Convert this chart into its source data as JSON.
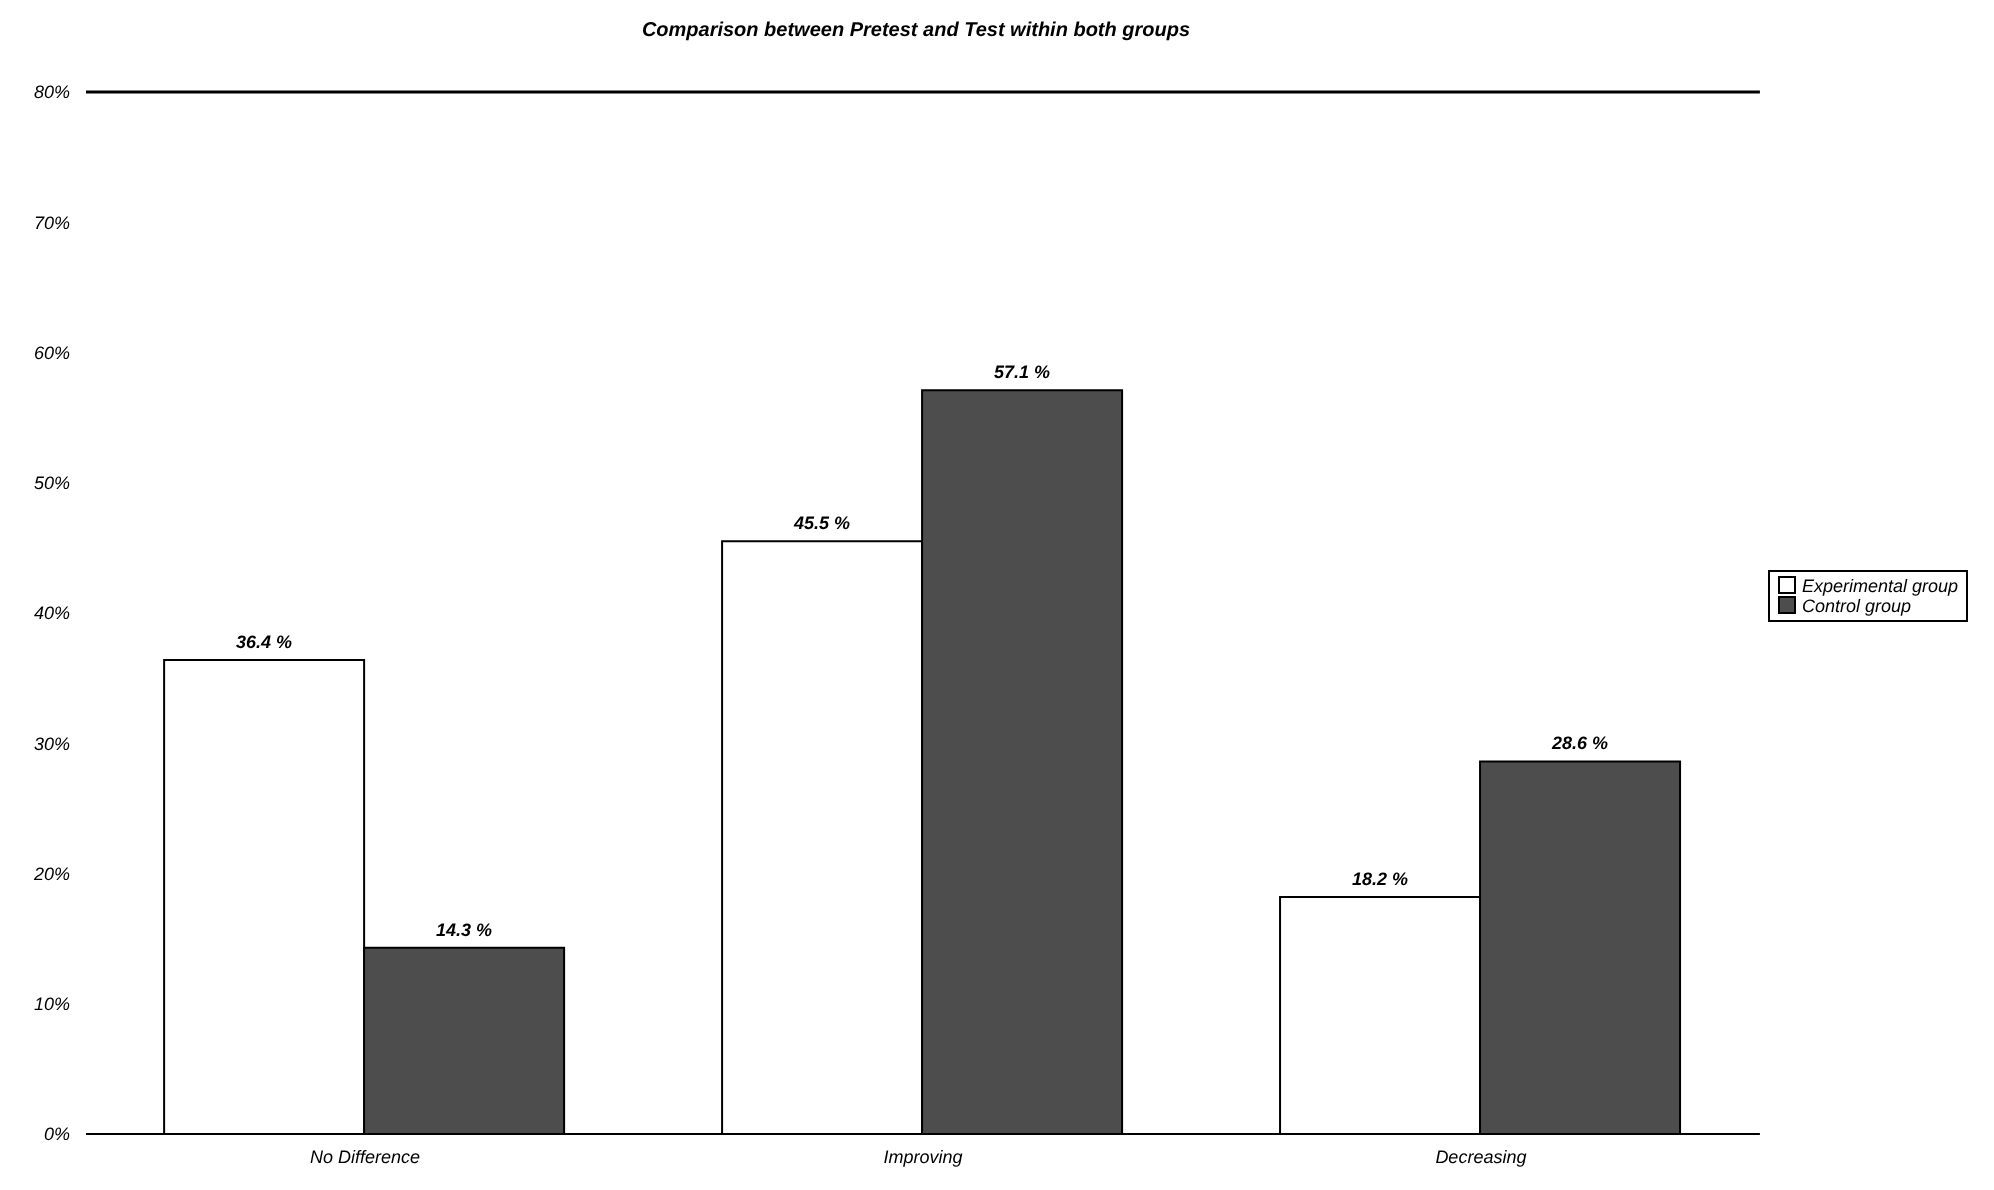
{
  "chart_data": {
    "type": "bar",
    "title": "Comparison between Pretest and Test within both groups",
    "categories": [
      "No Difference",
      "Improving",
      "Decreasing"
    ],
    "series": [
      {
        "name": "Experimental group",
        "color": "#ffffff",
        "values": [
          36.4,
          45.5,
          18.2
        ],
        "value_labels": [
          "36.4 %",
          "45.5 %",
          "18.2 %"
        ]
      },
      {
        "name": "Control group",
        "color": "#4d4d4d",
        "values": [
          14.3,
          57.1,
          28.6
        ],
        "value_labels": [
          "14.3 %",
          "57.1 %",
          "28.6 %"
        ]
      }
    ],
    "ylim": [
      0,
      80
    ],
    "yticks": [
      {
        "value": 0,
        "label": "0%"
      },
      {
        "value": 10,
        "label": "10%"
      },
      {
        "value": 20,
        "label": "20%"
      },
      {
        "value": 30,
        "label": "30%"
      },
      {
        "value": 40,
        "label": "40%"
      },
      {
        "value": 50,
        "label": "50%"
      },
      {
        "value": 60,
        "label": "60%"
      },
      {
        "value": 70,
        "label": "70%"
      },
      {
        "value": 80,
        "label": "80%"
      }
    ],
    "grid": false,
    "legend": "right"
  }
}
